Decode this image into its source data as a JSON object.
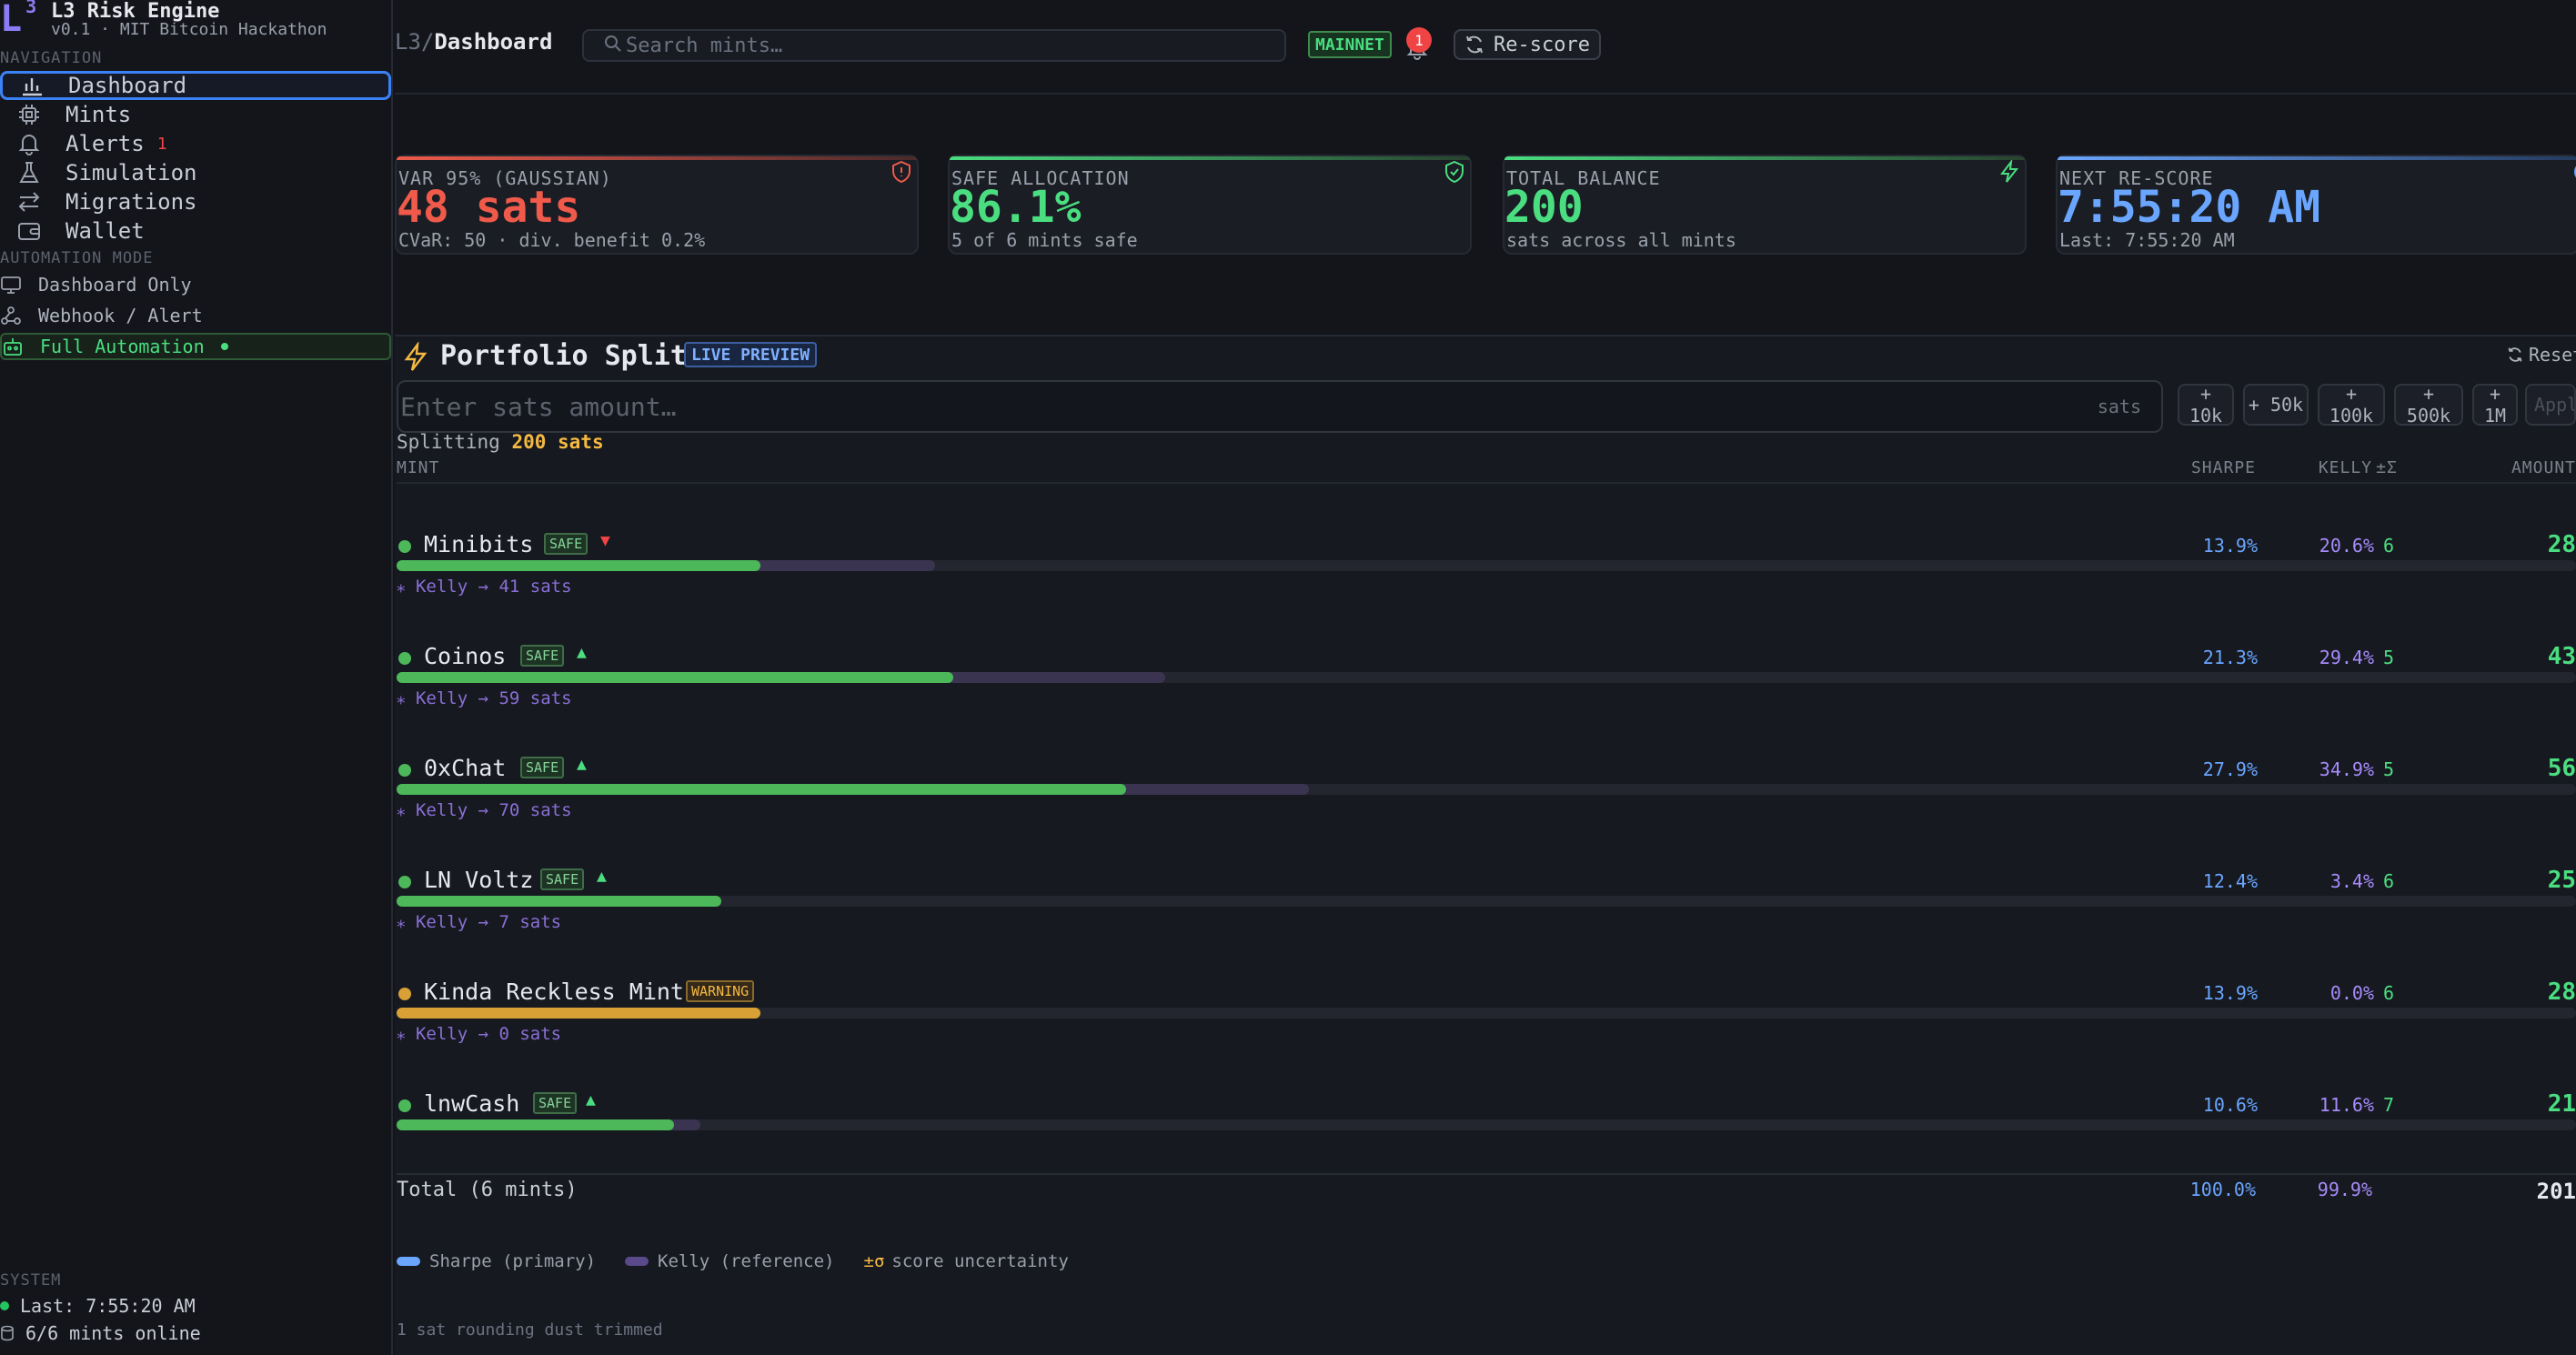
{
  "brand": {
    "logo": "L",
    "logo_sup": "3",
    "title": "L3 Risk Engine",
    "subtitle": "v0.1 · MIT Bitcoin Hackathon"
  },
  "nav": {
    "label": "NAVIGATION",
    "items": [
      {
        "label": "Dashboard",
        "icon": "bar-chart-icon"
      },
      {
        "label": "Mints",
        "icon": "chip-icon"
      },
      {
        "label": "Alerts",
        "icon": "bell-icon",
        "badge": "1"
      },
      {
        "label": "Simulation",
        "icon": "flask-icon"
      },
      {
        "label": "Migrations",
        "icon": "swap-icon"
      },
      {
        "label": "Wallet",
        "icon": "wallet-icon"
      }
    ]
  },
  "automation": {
    "label": "AUTOMATION MODE",
    "items": [
      {
        "label": "Dashboard Only",
        "icon": "monitor-icon"
      },
      {
        "label": "Webhook / Alert",
        "icon": "webhook-icon"
      },
      {
        "label": "Full Automation",
        "icon": "robot-icon"
      }
    ]
  },
  "system": {
    "label": "SYSTEM",
    "last": "Last: 7:55:20 AM",
    "online": "6/6 mints online"
  },
  "topbar": {
    "crumb_root": "L3",
    "crumb_sep": "/",
    "crumb_page": "Dashboard",
    "search_placeholder": "Search mints…",
    "network": "MAINNET",
    "alert_count": "1",
    "rescore_label": "Re-score"
  },
  "cards": [
    {
      "label": "VAR 95% (GAUSSIAN)",
      "value": "48 sats",
      "sub": "CVaR: 50 · div. benefit 0.2%",
      "color": "#ef5a4a",
      "icon": "shield-alert-icon"
    },
    {
      "label": "SAFE ALLOCATION",
      "value": "86.1%",
      "sub": "5 of 6 mints safe",
      "color": "#4ade80",
      "icon": "shield-check-icon"
    },
    {
      "label": "TOTAL BALANCE",
      "value": "200",
      "sub": "sats across all mints",
      "color": "#4ade80",
      "icon": "bolt-icon"
    },
    {
      "label": "NEXT RE-SCORE",
      "value": "7:55:20 AM",
      "sub": "Last: 7:55:20 AM",
      "color": "#6aa6ff",
      "icon": "clock-icon"
    }
  ],
  "portfolio": {
    "title": "Portfolio Split",
    "live_badge": "LIVE PREVIEW",
    "reset_label": "Reset",
    "input_placeholder": "Enter sats amount…",
    "input_unit": "sats",
    "quick": [
      "+ 10k",
      "+ 50k",
      "+ 100k",
      "+ 500k",
      "+ 1M"
    ],
    "apply_label": "Apply",
    "splitting_prefix": "Splitting",
    "splitting_amount": "200 sats",
    "columns": {
      "mint": "MINT",
      "sharpe": "SHARPE",
      "kelly": "KELLY",
      "sigma": "±Σ",
      "amount": "AMOUNT"
    },
    "rows": [
      {
        "name": "Minibits",
        "status": "SAFE",
        "trend": "▼",
        "trend_color": "#ef4444",
        "sharpe": "13.9%",
        "kelly": "20.6%",
        "sigma": "6",
        "amount": "28",
        "kelly_line": "⁎ Kelly → 41 sats",
        "sharpe_frac": 0.139,
        "kelly_frac": 0.206,
        "color": "#4cb85a"
      },
      {
        "name": "Coinos",
        "status": "SAFE",
        "trend": "▲",
        "trend_color": "#4ade80",
        "sharpe": "21.3%",
        "kelly": "29.4%",
        "sigma": "5",
        "amount": "43",
        "kelly_line": "⁎ Kelly → 59 sats",
        "sharpe_frac": 0.213,
        "kelly_frac": 0.294,
        "color": "#4cb85a"
      },
      {
        "name": "0xChat",
        "status": "SAFE",
        "trend": "▲",
        "trend_color": "#4ade80",
        "sharpe": "27.9%",
        "kelly": "34.9%",
        "sigma": "5",
        "amount": "56",
        "kelly_line": "⁎ Kelly → 70 sats",
        "sharpe_frac": 0.279,
        "kelly_frac": 0.349,
        "color": "#4cb85a"
      },
      {
        "name": "LN Voltz",
        "status": "SAFE",
        "trend": "▲",
        "trend_color": "#4ade80",
        "sharpe": "12.4%",
        "kelly": "3.4%",
        "sigma": "6",
        "amount": "25",
        "kelly_line": "⁎ Kelly → 7 sats",
        "sharpe_frac": 0.124,
        "kelly_frac": 0.034,
        "color": "#4cb85a"
      },
      {
        "name": "Kinda Reckless Mint",
        "status": "WARNING",
        "trend": "",
        "trend_color": "#f5b942",
        "sharpe": "13.9%",
        "kelly": "0.0%",
        "sigma": "6",
        "amount": "28",
        "kelly_line": "⁎ Kelly → 0 sats",
        "sharpe_frac": 0.139,
        "kelly_frac": 0.0,
        "color": "#d9a135"
      },
      {
        "name": "lnwCash",
        "status": "SAFE",
        "trend": "▲",
        "trend_color": "#4ade80",
        "sharpe": "10.6%",
        "kelly": "11.6%",
        "sigma": "7",
        "amount": "21",
        "kelly_line": "",
        "sharpe_frac": 0.106,
        "kelly_frac": 0.116,
        "color": "#4cb85a"
      }
    ],
    "total": {
      "label": "Total (6 mints)",
      "sharpe": "100.0%",
      "kelly": "99.9%",
      "amount": "201"
    },
    "legend": {
      "sharpe": "Sharpe (primary)",
      "kelly": "Kelly (reference)",
      "sigma_symbol": "±σ",
      "sigma": "score uncertainty"
    },
    "dust_note": "1 sat rounding dust trimmed"
  }
}
